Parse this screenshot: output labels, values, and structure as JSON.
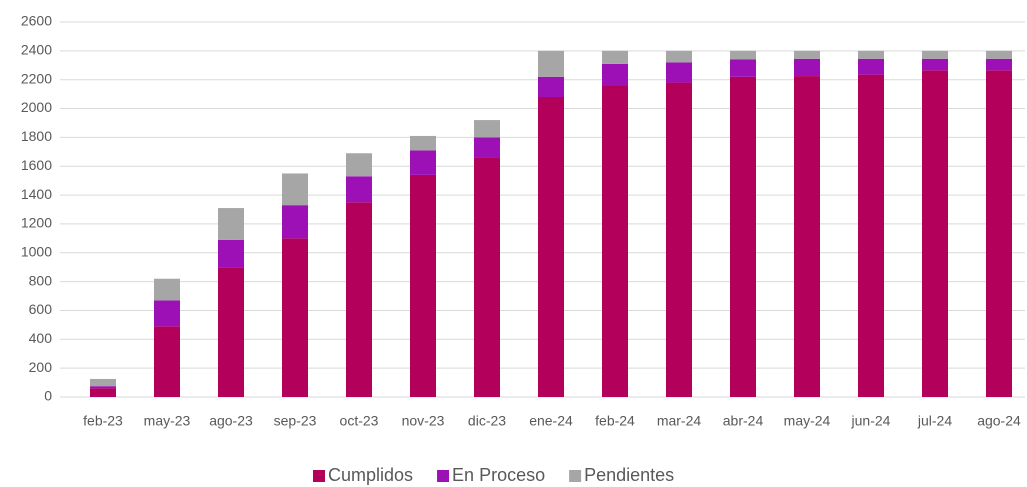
{
  "chart_data": {
    "type": "stacked_bar",
    "categories": [
      "feb-23",
      "may-23",
      "ago-23",
      "sep-23",
      "oct-23",
      "nov-23",
      "dic-23",
      "ene-24",
      "feb-24",
      "mar-24",
      "abr-24",
      "may-24",
      "jun-24",
      "jul-24",
      "ago-24"
    ],
    "series": [
      {
        "name": "Cumplidos",
        "color": "#b3005a",
        "values": [
          60,
          490,
          900,
          1100,
          1350,
          1540,
          1660,
          2080,
          2160,
          2180,
          2220,
          2225,
          2235,
          2265,
          2265
        ]
      },
      {
        "name": "En Proceso",
        "color": "#9c10b5",
        "values": [
          15,
          180,
          190,
          230,
          180,
          170,
          140,
          140,
          150,
          140,
          120,
          120,
          110,
          80,
          80
        ]
      },
      {
        "name": "Pendientes",
        "color": "#a6a6a6",
        "values": [
          50,
          150,
          220,
          220,
          160,
          100,
          120,
          180,
          90,
          80,
          60,
          55,
          55,
          55,
          55
        ]
      }
    ],
    "ylim": [
      0,
      2600
    ],
    "yticks": [
      0,
      200,
      400,
      600,
      800,
      1000,
      1200,
      1400,
      1600,
      1800,
      2000,
      2200,
      2400,
      2600
    ],
    "grid": true,
    "legend": "bottom"
  }
}
